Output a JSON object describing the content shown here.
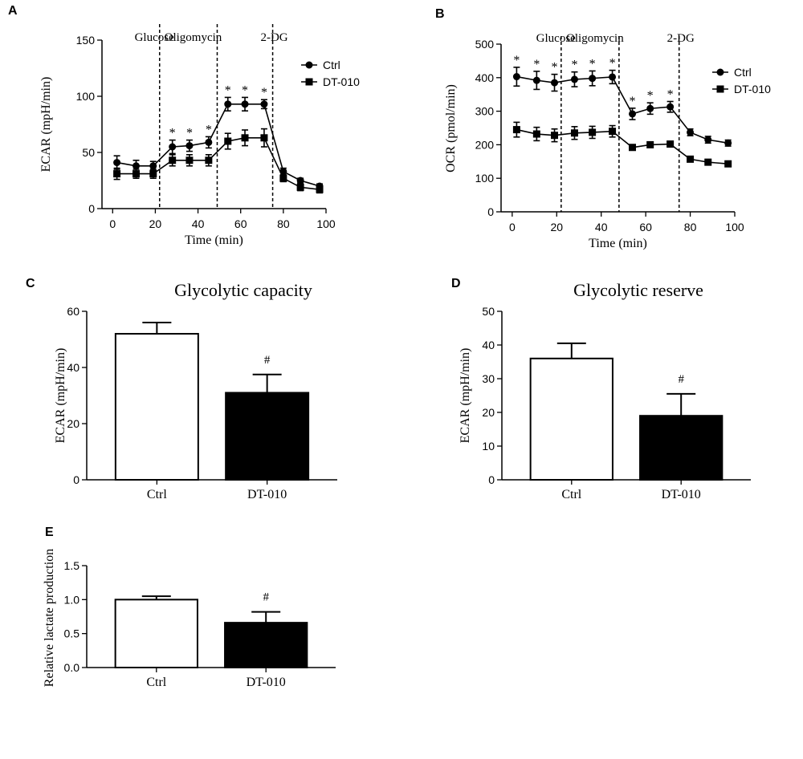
{
  "chart_data": [
    {
      "panel": "A",
      "type": "line",
      "title": "",
      "xlabel": "Time (min)",
      "ylabel": "ECAR (mpH/min)",
      "xlim": [
        -5,
        100
      ],
      "ylim": [
        0,
        150
      ],
      "xticks": [
        "0",
        "20",
        "40",
        "60",
        "80",
        "100"
      ],
      "xtick_values": [
        0,
        20,
        40,
        60,
        80,
        100
      ],
      "yticks": [
        "0",
        "50",
        "100",
        "150"
      ],
      "ytick_values": [
        0,
        50,
        100,
        150
      ],
      "injections": [
        {
          "label": "Glucose",
          "x": 22
        },
        {
          "label": "Oligomycin",
          "x": 49
        },
        {
          "label": "2-DG",
          "x": 75
        }
      ],
      "x": [
        2,
        11,
        19,
        28,
        36,
        45,
        54,
        62,
        71,
        80,
        88,
        97
      ],
      "series": [
        {
          "name": "Ctrl",
          "marker": "circle",
          "values": [
            41,
            38,
            38,
            55,
            56,
            59,
            93,
            93,
            93,
            33,
            25,
            20
          ],
          "errors": [
            6,
            5,
            4,
            6,
            5,
            5,
            6,
            6,
            4,
            3,
            2,
            2
          ]
        },
        {
          "name": "DT-010",
          "marker": "square",
          "values": [
            31,
            31,
            31,
            43,
            43,
            43,
            60,
            63,
            63,
            27,
            19,
            17
          ],
          "errors": [
            5,
            4,
            4,
            5,
            5,
            5,
            7,
            7,
            8,
            3,
            3,
            3
          ]
        }
      ],
      "significance": [
        {
          "x": 28,
          "label": "*"
        },
        {
          "x": 36,
          "label": "*"
        },
        {
          "x": 45,
          "label": "*"
        },
        {
          "x": 54,
          "label": "*"
        },
        {
          "x": 62,
          "label": "*"
        },
        {
          "x": 71,
          "label": "*"
        }
      ],
      "legend": "top-right"
    },
    {
      "panel": "B",
      "type": "line",
      "title": "",
      "xlabel": "Time (min)",
      "ylabel": "OCR (pmol/min)",
      "xlim": [
        -5,
        100
      ],
      "ylim": [
        0,
        500
      ],
      "xticks": [
        "0",
        "20",
        "40",
        "60",
        "80",
        "100"
      ],
      "xtick_values": [
        0,
        20,
        40,
        60,
        80,
        100
      ],
      "yticks": [
        "0",
        "100",
        "200",
        "300",
        "400",
        "500"
      ],
      "ytick_values": [
        0,
        100,
        200,
        300,
        400,
        500
      ],
      "injections": [
        {
          "label": "Glucose",
          "x": 22
        },
        {
          "label": "Oligomycin",
          "x": 48
        },
        {
          "label": "2-DG",
          "x": 75
        }
      ],
      "x": [
        2,
        11,
        19,
        28,
        36,
        45,
        54,
        62,
        71,
        80,
        88,
        97
      ],
      "series": [
        {
          "name": "Ctrl",
          "marker": "circle",
          "values": [
            403,
            392,
            385,
            395,
            398,
            402,
            292,
            308,
            313,
            237,
            215,
            205
          ],
          "errors": [
            28,
            27,
            25,
            22,
            22,
            20,
            17,
            17,
            16,
            10,
            10,
            9
          ]
        },
        {
          "name": "DT-010",
          "marker": "square",
          "values": [
            245,
            232,
            228,
            235,
            237,
            240,
            192,
            200,
            202,
            157,
            148,
            143
          ],
          "errors": [
            22,
            20,
            19,
            19,
            18,
            17,
            6,
            6,
            6,
            5,
            5,
            5
          ]
        }
      ],
      "significance": [
        {
          "x": 2,
          "label": "*"
        },
        {
          "x": 11,
          "label": "*"
        },
        {
          "x": 19,
          "label": "*"
        },
        {
          "x": 28,
          "label": "*"
        },
        {
          "x": 36,
          "label": "*"
        },
        {
          "x": 45,
          "label": "*"
        },
        {
          "x": 54,
          "label": "*"
        },
        {
          "x": 62,
          "label": "*"
        },
        {
          "x": 71,
          "label": "*"
        }
      ],
      "legend": "top-right"
    },
    {
      "panel": "C",
      "type": "bar",
      "title": "Glycolytic capacity",
      "xlabel": "",
      "ylabel": "ECAR (mpH/min)",
      "ylim": [
        0,
        60
      ],
      "yticks": [
        "0",
        "20",
        "40",
        "60"
      ],
      "ytick_values": [
        0,
        20,
        40,
        60
      ],
      "categories": [
        "Ctrl",
        "DT-010"
      ],
      "values": [
        52,
        31
      ],
      "errors": [
        4,
        6.5
      ],
      "fills": [
        "#ffffff",
        "#000000"
      ],
      "annotations": [
        "",
        "#"
      ]
    },
    {
      "panel": "D",
      "type": "bar",
      "title": "Glycolytic reserve",
      "xlabel": "",
      "ylabel": "ECAR (mpH/min)",
      "ylim": [
        0,
        50
      ],
      "yticks": [
        "0",
        "10",
        "20",
        "30",
        "40",
        "50"
      ],
      "ytick_values": [
        0,
        10,
        20,
        30,
        40,
        50
      ],
      "categories": [
        "Ctrl",
        "DT-010"
      ],
      "values": [
        36,
        19
      ],
      "errors": [
        4.5,
        6.5
      ],
      "fills": [
        "#ffffff",
        "#000000"
      ],
      "annotations": [
        "",
        "#"
      ]
    },
    {
      "panel": "E",
      "type": "bar",
      "title": "",
      "xlabel": "",
      "ylabel": "Relative  lactate production",
      "ylim": [
        0,
        1.5
      ],
      "yticks": [
        "0.0",
        "0.5",
        "1.0",
        "1.5"
      ],
      "ytick_values": [
        0,
        0.5,
        1.0,
        1.5
      ],
      "categories": [
        "Ctrl",
        "DT-010"
      ],
      "values": [
        1.0,
        0.66
      ],
      "errors": [
        0.05,
        0.16
      ],
      "fills": [
        "#ffffff",
        "#000000"
      ],
      "annotations": [
        "",
        "#"
      ]
    }
  ]
}
